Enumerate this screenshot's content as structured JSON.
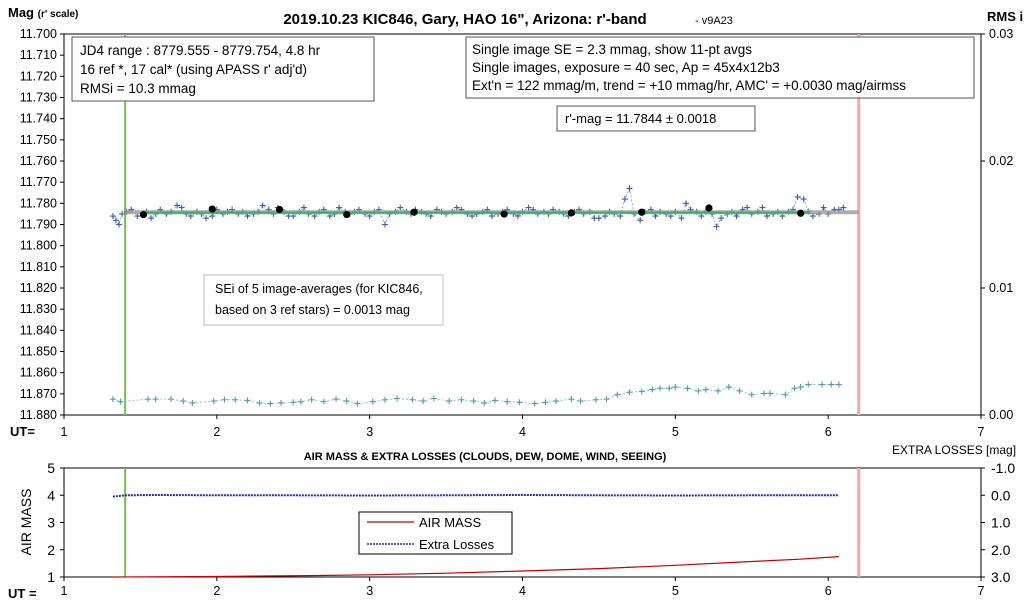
{
  "chart_data": [
    {
      "type": "scatter",
      "title": "2019.10.23 KIC846, Gary, HAO 16\", Arizona: r'-band",
      "version_tag": "- v9A23",
      "ylabel_main": "Mag",
      "ylabel_sub": "(r' scale)",
      "y2label": "RMS i",
      "xlabel": "UT=",
      "xlim": [
        1,
        7
      ],
      "ylim": [
        11.88,
        11.7
      ],
      "y2lim": [
        0.0,
        0.03
      ],
      "x_ticks": [
        "1",
        "2",
        "3",
        "4",
        "5",
        "6",
        "7"
      ],
      "y_ticks": [
        "11.700",
        "11.710",
        "11.720",
        "11.730",
        "11.740",
        "11.750",
        "11.760",
        "11.770",
        "11.780",
        "11.790",
        "11.800",
        "11.810",
        "11.820",
        "11.830",
        "11.840",
        "11.850",
        "11.860",
        "11.870",
        "11.880"
      ],
      "y2_ticks": [
        "0.00",
        "0.01",
        "0.02",
        "0.03"
      ],
      "grid": false,
      "start_line_x": 1.4,
      "end_line_x": 6.2,
      "info_box_1": [
        "JD4 range : 8779.555 - 8779.754,  4.8  hr",
        "16 ref *, 17 cal* (using APASS r' adj'd)",
        "RMSi = 10.3 mmag"
      ],
      "info_box_2": [
        "Single image SE = 2.3 mmag, show  11-pt avgs",
        "Single images, exposure = 40 sec, Ap = 45x4x12b3",
        "Ext'n = 122 mmag/m, trend =  +10 mmag/hr, AMC' = +0.0030 mag/airmss"
      ],
      "mag_box": "r'-mag = 11.7844 ± 0.0018",
      "sei_box": [
        "SEi of 5 image-averages (for KIC846,",
        "based on 3 ref stars) = 0.0013 mag"
      ],
      "fit_line": {
        "x": [
          1.52,
          5.88
        ],
        "y": [
          11.7844,
          11.7844
        ]
      },
      "gray_line": {
        "x": [
          1.4,
          6.2
        ],
        "y": [
          11.7842,
          11.7842
        ]
      },
      "series": [
        {
          "values_x": [
            1.32,
            1.34,
            1.36,
            1.38,
            1.41,
            1.44,
            1.48,
            1.54,
            1.57,
            1.6,
            1.63,
            1.67,
            1.7,
            1.74,
            1.77,
            1.8,
            1.83,
            1.87,
            1.9,
            1.93,
            1.97,
            2.0,
            2.04,
            2.07,
            2.1,
            2.14,
            2.17,
            2.2,
            2.24,
            2.27,
            2.3,
            2.34,
            2.37,
            2.4,
            2.44,
            2.47,
            2.5,
            2.54,
            2.57,
            2.6,
            2.64,
            2.67,
            2.7,
            2.74,
            2.77,
            2.8,
            2.84,
            2.87,
            2.9,
            2.93,
            2.97,
            3.0,
            3.03,
            3.06,
            3.1,
            3.13,
            3.17,
            3.2,
            3.24,
            3.27,
            3.3,
            3.34,
            3.37,
            3.4,
            3.44,
            3.47,
            3.5,
            3.54,
            3.57,
            3.6,
            3.64,
            3.67,
            3.7,
            3.74,
            3.77,
            3.8,
            3.84,
            3.87,
            3.9,
            3.94,
            3.97,
            4.0,
            4.04,
            4.07,
            4.1,
            4.14,
            4.17,
            4.2,
            4.24,
            4.27,
            4.3,
            4.34,
            4.37,
            4.4,
            4.44,
            4.47,
            4.5,
            4.54,
            4.57,
            4.6,
            4.64,
            4.67,
            4.7,
            4.73,
            4.77,
            4.8,
            4.84,
            4.87,
            4.9,
            4.94,
            4.97,
            5.0,
            5.04,
            5.07,
            5.1,
            5.14,
            5.17,
            5.2,
            5.24,
            5.27,
            5.3,
            5.34,
            5.37,
            5.4,
            5.44,
            5.47,
            5.5,
            5.54,
            5.57,
            5.6,
            5.64,
            5.67,
            5.7,
            5.74,
            5.77,
            5.8,
            5.84,
            5.87,
            5.9,
            5.94,
            5.97,
            6.0,
            6.04,
            6.07,
            6.1
          ],
          "values_y": [
            11.786,
            11.788,
            11.79,
            11.785,
            11.784,
            11.783,
            11.786,
            11.784,
            11.787,
            11.785,
            11.783,
            11.785,
            11.784,
            11.781,
            11.782,
            11.785,
            11.786,
            11.784,
            11.785,
            11.787,
            11.786,
            11.783,
            11.785,
            11.784,
            11.783,
            11.785,
            11.784,
            11.786,
            11.785,
            11.784,
            11.781,
            11.783,
            11.785,
            11.782,
            11.784,
            11.786,
            11.786,
            11.784,
            11.782,
            11.785,
            11.786,
            11.784,
            11.783,
            11.786,
            11.785,
            11.782,
            11.784,
            11.785,
            11.784,
            11.783,
            11.785,
            11.786,
            11.784,
            11.783,
            11.79,
            11.785,
            11.784,
            11.782,
            11.784,
            11.785,
            11.783,
            11.784,
            11.785,
            11.786,
            11.783,
            11.784,
            11.785,
            11.784,
            11.782,
            11.783,
            11.785,
            11.786,
            11.785,
            11.784,
            11.783,
            11.786,
            11.785,
            11.784,
            11.783,
            11.785,
            11.786,
            11.784,
            11.782,
            11.783,
            11.785,
            11.784,
            11.785,
            11.783,
            11.784,
            11.785,
            11.786,
            11.784,
            11.783,
            11.785,
            11.784,
            11.787,
            11.787,
            11.786,
            11.784,
            11.785,
            11.786,
            11.778,
            11.773,
            11.785,
            11.788,
            11.784,
            11.783,
            11.786,
            11.784,
            11.785,
            11.786,
            11.784,
            11.787,
            11.78,
            11.783,
            11.784,
            11.786,
            11.784,
            11.785,
            11.791,
            11.787,
            11.785,
            11.784,
            11.786,
            11.783,
            11.782,
            11.785,
            11.784,
            11.782,
            11.786,
            11.785,
            11.784,
            11.786,
            11.784,
            11.783,
            11.777,
            11.778,
            11.784,
            11.786,
            11.785,
            11.782,
            11.785,
            11.783,
            11.783,
            11.782
          ]
        },
        {
          "values_x": [
            1.52,
            1.97,
            2.41,
            2.85,
            3.29,
            3.88,
            4.32,
            4.78,
            5.22,
            5.82
          ],
          "values_y": [
            11.7853,
            11.7827,
            11.7829,
            11.7853,
            11.7842,
            11.7851,
            11.7845,
            11.7842,
            11.7822,
            11.7847
          ]
        },
        {
          "axis": "right",
          "values_x": [
            1.32,
            1.37,
            1.55,
            1.6,
            1.7,
            1.78,
            1.84,
            1.98,
            2.05,
            2.12,
            2.2,
            2.28,
            2.35,
            2.42,
            2.5,
            2.55,
            2.62,
            2.7,
            2.78,
            2.85,
            2.92,
            3.02,
            3.1,
            3.18,
            3.28,
            3.35,
            3.42,
            3.52,
            3.6,
            3.68,
            3.75,
            3.82,
            3.9,
            3.98,
            4.08,
            4.15,
            4.22,
            4.32,
            4.38,
            4.48,
            4.55,
            4.62,
            4.7,
            4.78,
            4.85,
            4.9,
            4.96,
            5.0,
            5.08,
            5.15,
            5.2,
            5.28,
            5.35,
            5.42,
            5.5,
            5.58,
            5.62,
            5.72,
            5.78,
            5.82,
            5.87,
            5.96,
            6.02,
            6.07
          ],
          "values_y": [
            0.00125,
            0.00105,
            0.00125,
            0.00125,
            0.00125,
            0.0011,
            0.00095,
            0.0011,
            0.0012,
            0.0012,
            0.00115,
            0.00095,
            0.0009,
            0.00095,
            0.001,
            0.00105,
            0.0012,
            0.00105,
            0.00125,
            0.0011,
            0.0009,
            0.00105,
            0.0012,
            0.0013,
            0.0012,
            0.0011,
            0.0013,
            0.0011,
            0.0012,
            0.0011,
            0.00095,
            0.00115,
            0.00105,
            0.001,
            0.0009,
            0.001,
            0.0011,
            0.00125,
            0.0011,
            0.0012,
            0.00125,
            0.0016,
            0.0018,
            0.00185,
            0.002,
            0.0021,
            0.0021,
            0.0022,
            0.0021,
            0.0019,
            0.002,
            0.0019,
            0.0022,
            0.0019,
            0.0016,
            0.0017,
            0.0017,
            0.0016,
            0.0021,
            0.0022,
            0.0024,
            0.0024,
            0.0024,
            0.0024
          ]
        }
      ]
    },
    {
      "type": "line",
      "title": "AIR MASS & EXTRA LOSSES (CLOUDS, DEW, DOME, WIND, SEEING)",
      "ylabel": "AIR MASS",
      "y2label": "EXTRA LOSSES [mag]",
      "xlabel": "UT =",
      "xlim": [
        1,
        7
      ],
      "ylim": [
        1,
        5
      ],
      "y2lim": [
        3.0,
        -1.0
      ],
      "x_ticks": [
        "1",
        "2",
        "3",
        "4",
        "5",
        "6",
        "7"
      ],
      "y_ticks": [
        "1",
        "2",
        "3",
        "4",
        "5"
      ],
      "y2_ticks": [
        "-1.0",
        "0.0",
        "1.0",
        "2.0",
        "3.0"
      ],
      "legend": "center",
      "start_line_x": 1.4,
      "end_line_x": 6.2,
      "series": [
        {
          "name": "AIR MASS",
          "color": "#c00000",
          "x": [
            1.32,
            2.0,
            2.6,
            3.0,
            3.5,
            4.0,
            4.5,
            5.0,
            5.5,
            5.8,
            6.07
          ],
          "y": [
            1.0,
            1.02,
            1.05,
            1.08,
            1.14,
            1.22,
            1.31,
            1.43,
            1.57,
            1.65,
            1.75
          ]
        },
        {
          "name": "Extra Losses",
          "color": "#1f2f9e",
          "x": [
            1.32,
            1.4,
            1.6,
            2.0,
            2.5,
            3.0,
            3.5,
            4.0,
            4.5,
            5.0,
            5.5,
            5.8,
            6.07
          ],
          "y": [
            0.05,
            0.0,
            -0.01,
            0.0,
            0.0,
            0.01,
            0.0,
            -0.01,
            0.0,
            0.01,
            0.0,
            0.0,
            0.0
          ]
        }
      ]
    }
  ]
}
